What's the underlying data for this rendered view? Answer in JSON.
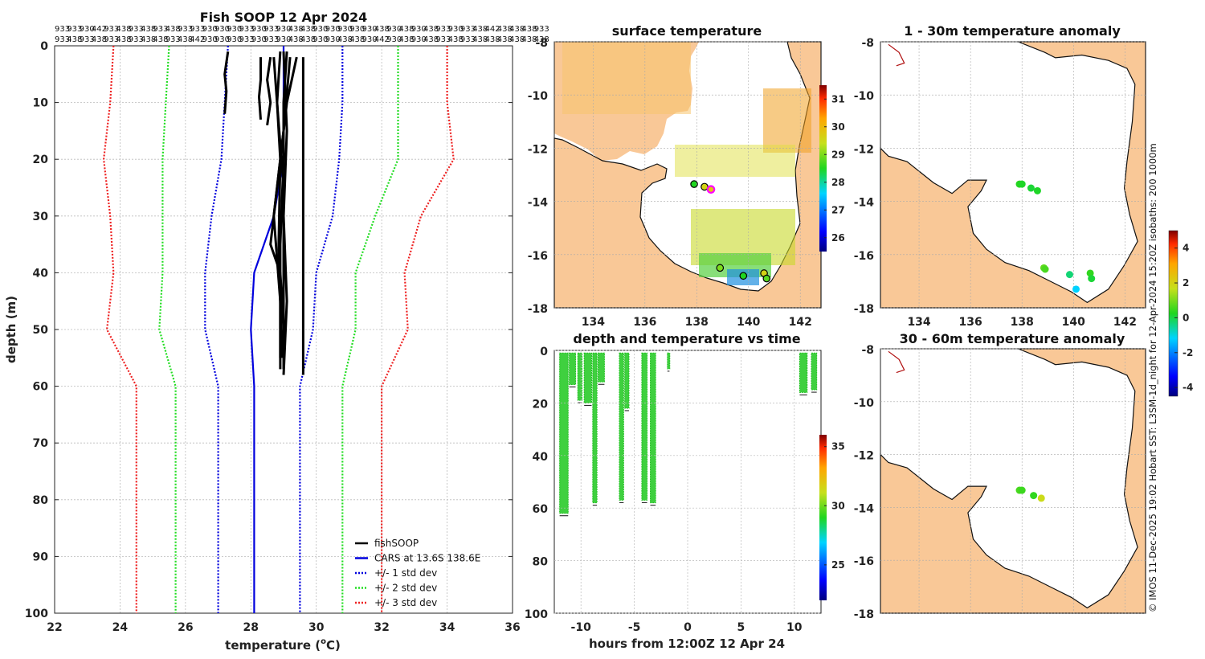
{
  "chart_data": [
    {
      "id": "profile",
      "type": "line",
      "title": "Fish SOOP 12 Apr 2024",
      "xlabel": "temperature (",
      "xlabel_unit": "o",
      "xlabel_end": "C)",
      "ylabel": "depth (m)",
      "xlim": [
        22,
        36
      ],
      "ylim": [
        0,
        100
      ],
      "xticks": [
        22,
        24,
        26,
        28,
        30,
        32,
        34,
        36
      ],
      "yticks": [
        0,
        10,
        20,
        30,
        40,
        50,
        60,
        70,
        80,
        90,
        100
      ],
      "header_row1": [
        "933",
        "933",
        "930",
        "442",
        "933",
        "438",
        "933",
        "438",
        "933",
        "438",
        "933",
        "933",
        "930",
        "930",
        "930",
        "933",
        "930",
        "933",
        "930",
        "438",
        "438",
        "930",
        "930",
        "930",
        "930",
        "930",
        "438",
        "930",
        "438",
        "930",
        "438",
        "933",
        "930",
        "933",
        "438",
        "442",
        "438",
        "438",
        "438",
        "933"
      ],
      "header_row2": [
        "933",
        "438",
        "933",
        "438",
        "933",
        "438",
        "933",
        "438",
        "438",
        "933",
        "438",
        "442",
        "930",
        "930",
        "930",
        "933",
        "930",
        "933",
        "930",
        "438",
        "438",
        "930",
        "930",
        "438",
        "438",
        "930",
        "442",
        "930",
        "438",
        "930",
        "438",
        "933",
        "438",
        "933",
        "438",
        "438",
        "438",
        "438",
        "438",
        "438"
      ],
      "depth_levels": [
        0,
        10,
        20,
        30,
        40,
        50,
        60,
        70,
        80,
        90,
        100
      ],
      "series": [
        {
          "name": "CARS mean",
          "style": "solid",
          "color": "#0000dd",
          "values": [
            29.0,
            29.0,
            29.0,
            28.7,
            28.1,
            28.0,
            28.1,
            28.1,
            28.1,
            28.1,
            28.1
          ]
        },
        {
          "name": "CARS -1 std",
          "style": "dotted",
          "color": "#0000dd",
          "values": [
            27.3,
            27.2,
            27.1,
            26.8,
            26.6,
            26.6,
            27.0,
            27.0,
            27.0,
            27.0,
            27.0
          ]
        },
        {
          "name": "CARS +1 std",
          "style": "dotted",
          "color": "#0000dd",
          "values": [
            30.8,
            30.8,
            30.7,
            30.5,
            30.0,
            29.9,
            29.5,
            29.5,
            29.5,
            29.5,
            29.5
          ]
        },
        {
          "name": "CARS -2 std",
          "style": "dotted",
          "color": "#22dd22",
          "values": [
            25.5,
            25.4,
            25.3,
            25.3,
            25.3,
            25.2,
            25.7,
            25.7,
            25.7,
            25.7,
            25.7
          ]
        },
        {
          "name": "CARS +2 std",
          "style": "dotted",
          "color": "#22dd22",
          "values": [
            32.5,
            32.5,
            32.5,
            31.8,
            31.2,
            31.2,
            30.8,
            30.8,
            30.8,
            30.8,
            30.8
          ]
        },
        {
          "name": "CARS -3 std",
          "style": "dotted",
          "color": "#ee2222",
          "values": [
            23.8,
            23.7,
            23.5,
            23.7,
            23.8,
            23.6,
            24.5,
            24.5,
            24.5,
            24.5,
            24.5
          ]
        },
        {
          "name": "CARS +3 std",
          "style": "dotted",
          "color": "#ee2222",
          "values": [
            34.0,
            34.0,
            34.2,
            33.2,
            32.7,
            32.8,
            32.0,
            32.0,
            32.0,
            32.0,
            32.0
          ]
        }
      ],
      "fish_profiles": [
        {
          "points": [
            [
              27.3,
              1
            ],
            [
              27.2,
              5
            ],
            [
              27.25,
              8
            ],
            [
              27.2,
              12
            ]
          ]
        },
        {
          "points": [
            [
              28.3,
              2
            ],
            [
              28.3,
              6
            ],
            [
              28.25,
              9
            ],
            [
              28.3,
              13
            ]
          ]
        },
        {
          "points": [
            [
              28.6,
              2
            ],
            [
              28.5,
              6
            ],
            [
              28.6,
              10
            ],
            [
              28.5,
              14
            ]
          ]
        },
        {
          "points": [
            [
              28.9,
              1
            ],
            [
              28.8,
              10
            ],
            [
              28.9,
              20
            ],
            [
              28.85,
              35
            ],
            [
              28.9,
              45
            ],
            [
              28.9,
              55
            ]
          ]
        },
        {
          "points": [
            [
              29.1,
              1
            ],
            [
              29.0,
              10
            ],
            [
              29.0,
              20
            ],
            [
              28.9,
              35
            ],
            [
              28.9,
              50
            ],
            [
              28.9,
              57
            ]
          ]
        },
        {
          "points": [
            [
              29.2,
              2
            ],
            [
              29.0,
              15
            ],
            [
              28.8,
              25
            ],
            [
              28.6,
              35
            ],
            [
              28.9,
              40
            ],
            [
              29.0,
              50
            ],
            [
              29.0,
              57
            ]
          ]
        },
        {
          "points": [
            [
              29.4,
              2
            ],
            [
              29.1,
              10
            ],
            [
              28.9,
              20
            ],
            [
              28.7,
              30
            ],
            [
              28.9,
              45
            ],
            [
              28.95,
              55
            ]
          ]
        },
        {
          "points": [
            [
              28.7,
              2
            ],
            [
              28.8,
              10
            ],
            [
              29.0,
              25
            ],
            [
              29.0,
              40
            ],
            [
              29.0,
              50
            ],
            [
              29.0,
              56
            ]
          ]
        },
        {
          "points": [
            [
              29.6,
              2
            ],
            [
              29.6,
              20
            ],
            [
              29.6,
              40
            ],
            [
              29.6,
              55
            ],
            [
              29.6,
              58
            ]
          ]
        },
        {
          "points": [
            [
              29.0,
              1
            ],
            [
              29.1,
              15
            ],
            [
              29.0,
              30
            ],
            [
              29.1,
              45
            ],
            [
              29.0,
              58
            ]
          ]
        }
      ],
      "legend": {
        "placement": "bottom-right",
        "entries": [
          {
            "label": "fishSOOP",
            "color": "#000000",
            "style": "solid"
          },
          {
            "label": "CARS at 13.6S 138.6E",
            "color": "#0000dd",
            "style": "solid"
          },
          {
            "label": "+/- 1 std dev",
            "color": "#0000dd",
            "style": "dotted"
          },
          {
            "label": "+/- 2 std dev",
            "color": "#22dd22",
            "style": "dotted"
          },
          {
            "label": "+/- 3 std dev",
            "color": "#ee2222",
            "style": "dotted"
          }
        ]
      }
    },
    {
      "id": "sst_map",
      "type": "heatmap",
      "title": "surface temperature",
      "xlim": [
        132.5,
        142.8
      ],
      "ylim": [
        -18,
        -8
      ],
      "xticks": [
        134,
        136,
        138,
        140,
        142
      ],
      "yticks": [
        -8,
        -10,
        -12,
        -14,
        -16,
        -18
      ],
      "colorbar_ticks": [
        26,
        27,
        28,
        29,
        30,
        31
      ],
      "colorbar_range": [
        25.5,
        31.5
      ],
      "stations": [
        {
          "lon": 137.9,
          "lat": -13.35,
          "value": 28.5
        },
        {
          "lon": 138.3,
          "lat": -13.45,
          "value": 29.6
        },
        {
          "lon": 138.55,
          "lat": -13.55,
          "value": 29.8,
          "current": true
        },
        {
          "lon": 138.9,
          "lat": -16.5,
          "value": 29.0
        },
        {
          "lon": 139.8,
          "lat": -16.8,
          "value": 28.5
        },
        {
          "lon": 140.6,
          "lat": -16.7,
          "value": 29.6
        },
        {
          "lon": 140.7,
          "lat": -16.9,
          "value": 28.8
        }
      ]
    },
    {
      "id": "anom_1_30",
      "type": "scatter",
      "title": "1 - 30m temperature anomaly",
      "xlim": [
        132.5,
        142.8
      ],
      "ylim": [
        -18,
        -8
      ],
      "xticks": [
        134,
        136,
        138,
        140,
        142
      ],
      "yticks": [
        -8,
        -10,
        -12,
        -14,
        -16,
        -18
      ],
      "points": [
        {
          "lon": 137.9,
          "lat": -13.35,
          "value": 0.3
        },
        {
          "lon": 138.0,
          "lat": -13.35,
          "value": 0.2
        },
        {
          "lon": 138.35,
          "lat": -13.5,
          "value": 0.1
        },
        {
          "lon": 138.6,
          "lat": -13.6,
          "value": 0.2
        },
        {
          "lon": 138.85,
          "lat": -16.5,
          "value": 0.8
        },
        {
          "lon": 138.9,
          "lat": -16.55,
          "value": 0.6
        },
        {
          "lon": 139.85,
          "lat": -16.75,
          "value": -0.3
        },
        {
          "lon": 140.1,
          "lat": -17.3,
          "value": -1.2
        },
        {
          "lon": 140.65,
          "lat": -16.7,
          "value": 0.4
        },
        {
          "lon": 140.7,
          "lat": -16.9,
          "value": 0.1
        }
      ]
    },
    {
      "id": "anom_30_60",
      "type": "scatter",
      "title": "30 - 60m temperature anomaly",
      "xlim": [
        132.5,
        142.8
      ],
      "ylim": [
        -18,
        -8
      ],
      "xticks": [
        134,
        136,
        138,
        140,
        142
      ],
      "yticks": [
        -8,
        -10,
        -12,
        -14,
        -16,
        -18
      ],
      "points": [
        {
          "lon": 137.9,
          "lat": -13.35,
          "value": 0.6
        },
        {
          "lon": 138.0,
          "lat": -13.35,
          "value": 0.5
        },
        {
          "lon": 138.45,
          "lat": -13.55,
          "value": 0.4
        },
        {
          "lon": 138.75,
          "lat": -13.65,
          "value": 1.8
        }
      ]
    },
    {
      "id": "anom_colorbar",
      "type": "colorbar",
      "ticks": [
        -4,
        -2,
        0,
        2,
        4
      ],
      "range": [
        -4.5,
        5
      ]
    },
    {
      "id": "time_depth",
      "type": "scatter",
      "title": "depth and temperature vs time",
      "xlabel": "hours from 12:00Z 12 Apr 24",
      "xlim": [
        -12.5,
        12.5
      ],
      "ylim": [
        0,
        100
      ],
      "xticks": [
        -10,
        -5,
        0,
        5,
        10
      ],
      "yticks": [
        0,
        20,
        40,
        60,
        80,
        100
      ],
      "colorbar_ticks": [
        25,
        30,
        35
      ],
      "colorbar_range": [
        22,
        36
      ],
      "casts": [
        {
          "t0": -12.0,
          "t1": -11.2,
          "maxdepth": 62
        },
        {
          "t0": -11.1,
          "t1": -10.5,
          "maxdepth": 13
        },
        {
          "t0": -10.3,
          "t1": -9.9,
          "maxdepth": 19
        },
        {
          "t0": -9.7,
          "t1": -9.0,
          "maxdepth": 20
        },
        {
          "t0": -8.9,
          "t1": -8.5,
          "maxdepth": 58
        },
        {
          "t0": -8.4,
          "t1": -7.8,
          "maxdepth": 12
        },
        {
          "t0": -6.4,
          "t1": -6.0,
          "maxdepth": 57
        },
        {
          "t0": -5.9,
          "t1": -5.5,
          "maxdepth": 22
        },
        {
          "t0": -4.3,
          "t1": -3.8,
          "maxdepth": 57
        },
        {
          "t0": -3.5,
          "t1": -3.0,
          "maxdepth": 58
        },
        {
          "t0": -1.9,
          "t1": -1.7,
          "maxdepth": 7
        },
        {
          "t0": 10.5,
          "t1": 11.2,
          "maxdepth": 16
        },
        {
          "t0": 11.6,
          "t1": 12.1,
          "maxdepth": 15
        }
      ]
    }
  ],
  "credit": "© IMOS 11-Dec-2025 19:02 Hobart SST: L3SM-1d_night for 12-Apr-2024 15:20Z isobaths: 200  1000m"
}
